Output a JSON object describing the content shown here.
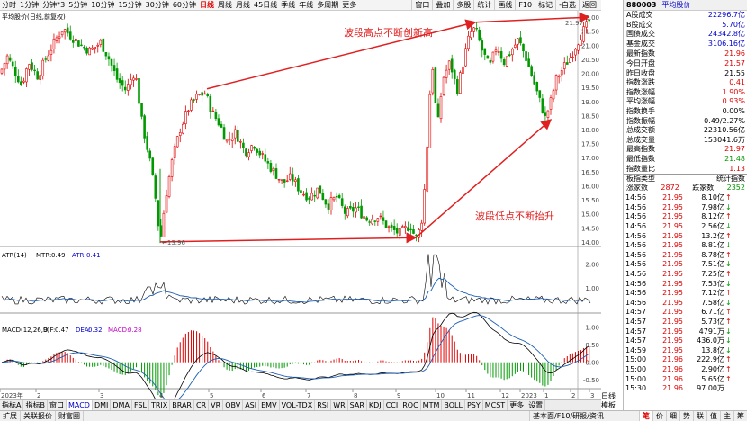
{
  "toolbar": {
    "items": [
      "分时",
      "1分钟",
      "分钟*3",
      "5分钟",
      "10分钟",
      "15分钟",
      "30分钟",
      "60分钟",
      "日线",
      "周线",
      "月线",
      "45日线",
      "季线",
      "年线",
      "多周期",
      "更多"
    ],
    "active_index": 8,
    "right_items": [
      "窗口",
      "叠加",
      "多股",
      "统计",
      "画线",
      "F10",
      "标记",
      "-自选",
      "返回"
    ]
  },
  "main_chart": {
    "legend": "平均股价(日线,前复权)",
    "y_labels": [
      "22.00",
      "21.50",
      "21.00",
      "20.50",
      "20.00",
      "19.50",
      "19.00",
      "18.50",
      "18.00",
      "17.50",
      "17.00",
      "16.50",
      "16.00",
      "15.50",
      "15.00",
      "14.50",
      "14.00"
    ],
    "annotation_high": "波段高点不断创新高",
    "annotation_low": "波段低点不断抬升",
    "low_marker": "13.96",
    "high_marker": "21.97",
    "colors": {
      "up": "#e00000",
      "down": "#009900",
      "arrow": "#e02020"
    }
  },
  "atr": {
    "legend_name": "ATR(14)",
    "mtr_label": "MTR:",
    "mtr_value": "0.49",
    "atr_label": "ATR:",
    "atr_value": "0.41",
    "y_labels": [
      "2.00",
      "1.00"
    ]
  },
  "macd": {
    "legend_name": "MACD(12,26,9)",
    "dif_label": "DIF:",
    "dif_value": "0.47",
    "dea_label": "DEA:",
    "dea_value": "0.32",
    "macd_label": "MACD:",
    "macd_value": "0.28",
    "y_labels": [
      "1.00",
      "0.50",
      "0.00",
      "-0.50"
    ]
  },
  "x_axis": {
    "labels": [
      "2023年",
      "2",
      "3",
      "4",
      "5",
      "6",
      "7",
      "8",
      "9",
      "10",
      "11",
      "12",
      "2023",
      "1",
      "2",
      "3"
    ]
  },
  "tabs": [
    "指标A",
    "指标B",
    "窗口",
    "MACD",
    "DMI",
    "DMA",
    "FSL",
    "TRIX",
    "BRAR",
    "CR",
    "VR",
    "OBV",
    "ASI",
    "EMV",
    "VOL-TDX",
    "RSI",
    "WR",
    "SAR",
    "KDJ",
    "CCI",
    "ROC",
    "MTM",
    "BOLL",
    "PSY",
    "MCST",
    "更多",
    "设置"
  ],
  "active_tab": 3,
  "bottom_left": [
    "扩展",
    "关联报价",
    "财富圈"
  ],
  "bottom_status": "基本面/F10/研报/资讯",
  "bottom_right_tabs": [
    "笔",
    "价",
    "细",
    "势",
    "联",
    "值",
    "主",
    "筹"
  ],
  "right_panel": {
    "code": "880003",
    "name": "平均股价",
    "stats_top": [
      {
        "label": "A股成交",
        "value": "22296.7亿",
        "color": "blue"
      },
      {
        "label": "B股成交",
        "value": "5.70亿",
        "color": "blue"
      },
      {
        "label": "国债成交",
        "value": "24342.8亿",
        "color": "blue"
      },
      {
        "label": "基金成交",
        "value": "3106.16亿",
        "color": "blue"
      }
    ],
    "stats": [
      {
        "label": "最新指数",
        "value": "21.96",
        "color": "red"
      },
      {
        "label": "今日开盘",
        "value": "21.57",
        "color": "red"
      },
      {
        "label": "昨日收盘",
        "value": "21.55",
        "color": "black"
      },
      {
        "label": "指数涨跌",
        "value": "0.41",
        "color": "red"
      },
      {
        "label": "指数涨幅",
        "value": "1.90%",
        "color": "red"
      },
      {
        "label": "平均涨幅",
        "value": "0.93%",
        "color": "red"
      },
      {
        "label": "指数换手",
        "value": "0.00%",
        "color": "black"
      },
      {
        "label": "指数振幅",
        "value": "0.49/2.27%",
        "color": "black"
      },
      {
        "label": "总成交额",
        "value": "22310.56亿",
        "color": "black"
      },
      {
        "label": "总成交量",
        "value": "153041.6万",
        "color": "black"
      },
      {
        "label": "最高指数",
        "value": "21.97",
        "color": "red"
      },
      {
        "label": "最低指数",
        "value": "21.48",
        "color": "green"
      },
      {
        "label": "指数量比",
        "value": "1.13",
        "color": "red"
      }
    ],
    "type_header": {
      "left": "板指类型",
      "right": "统计指数"
    },
    "ud": {
      "up_label": "涨家数",
      "up_value": "2872",
      "down_label": "跌家数",
      "down_value": "2352"
    },
    "ticks": [
      {
        "t": "14:56",
        "p": "21.95",
        "v": "8.10亿",
        "d": "B"
      },
      {
        "t": "14:56",
        "p": "21.95",
        "v": "7.98亿",
        "d": "S"
      },
      {
        "t": "14:56",
        "p": "21.95",
        "v": "8.12亿",
        "d": "B"
      },
      {
        "t": "14:56",
        "p": "21.95",
        "v": "2.56亿",
        "d": "S"
      },
      {
        "t": "14:56",
        "p": "21.95",
        "v": "13.2亿",
        "d": "B"
      },
      {
        "t": "14:56",
        "p": "21.95",
        "v": "8.81亿",
        "d": "S"
      },
      {
        "t": "14:56",
        "p": "21.95",
        "v": "8.78亿",
        "d": "B"
      },
      {
        "t": "14:56",
        "p": "21.95",
        "v": "7.51亿",
        "d": "S"
      },
      {
        "t": "14:56",
        "p": "21.95",
        "v": "7.25亿",
        "d": "B"
      },
      {
        "t": "14:56",
        "p": "21.95",
        "v": "7.53亿",
        "d": "S"
      },
      {
        "t": "14:56",
        "p": "21.95",
        "v": "7.12亿",
        "d": "B"
      },
      {
        "t": "14:56",
        "p": "21.95",
        "v": "7.58亿",
        "d": "S"
      },
      {
        "t": "14:57",
        "p": "21.95",
        "v": "6.71亿",
        "d": "B"
      },
      {
        "t": "14:57",
        "p": "21.95",
        "v": "5.73亿",
        "d": "B"
      },
      {
        "t": "14:57",
        "p": "21.95",
        "v": "4791万",
        "d": "S"
      },
      {
        "t": "14:57",
        "p": "21.95",
        "v": "436.0万",
        "d": "S"
      },
      {
        "t": "14:59",
        "p": "21.95",
        "v": "13.8亿",
        "d": "S"
      },
      {
        "t": "15:00",
        "p": "21.96",
        "v": "222.9亿",
        "d": "B"
      },
      {
        "t": "15:00",
        "p": "21.96",
        "v": "2.90亿",
        "d": "B"
      },
      {
        "t": "15:00",
        "p": "21.96",
        "v": "5.65亿",
        "d": "B"
      },
      {
        "t": "15:30",
        "p": "21.96",
        "v": "97.00万",
        "d": "N"
      }
    ]
  },
  "midcol": {
    "label1": "日线",
    "label2": "模板"
  }
}
